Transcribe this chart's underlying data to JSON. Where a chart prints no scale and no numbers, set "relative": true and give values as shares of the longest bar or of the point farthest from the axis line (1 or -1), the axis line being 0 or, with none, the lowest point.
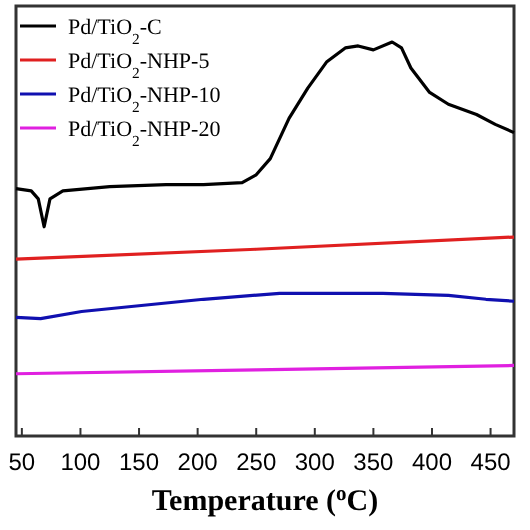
{
  "chart_data": {
    "type": "line",
    "xlabel": "Temperature ($^{o}$C)",
    "relative": true,
    "xlim": [
      45,
      470
    ],
    "xticks": [
      50,
      100,
      150,
      200,
      250,
      300,
      350,
      400,
      450
    ],
    "legend": "top left",
    "grid": false,
    "line_style": "solid",
    "series": [
      {
        "name": "Pd/TiO$_{2}$-C",
        "color": "#000000",
        "x": [
          45,
          58,
          64,
          69,
          74,
          85,
          125,
          173,
          205,
          238,
          250,
          262,
          278,
          294,
          310,
          326,
          337,
          350,
          366,
          374,
          382,
          398,
          414,
          438,
          454,
          470
        ],
        "values": [
          0.628,
          0.622,
          0.602,
          0.531,
          0.602,
          0.622,
          0.633,
          0.638,
          0.638,
          0.643,
          0.663,
          0.704,
          0.806,
          0.883,
          0.949,
          0.985,
          0.99,
          0.98,
          1,
          0.985,
          0.934,
          0.872,
          0.842,
          0.816,
          0.791,
          0.77
        ]
      },
      {
        "name": "Pd/TiO$_{2}$-NHP-5",
        "color": "#e02020",
        "x": [
          45,
          250,
          470
        ],
        "values": [
          0.449,
          0.474,
          0.505
        ]
      },
      {
        "name": "Pd/TiO$_{2}$-NHP-10",
        "color": "#1010b0",
        "x": [
          45,
          66,
          101,
          205,
          270,
          358,
          414,
          446,
          470
        ],
        "values": [
          0.301,
          0.298,
          0.316,
          0.347,
          0.362,
          0.362,
          0.357,
          0.347,
          0.342
        ]
      },
      {
        "name": "Pd/TiO$_{2}$-NHP-20",
        "color": "#e020e0",
        "x": [
          45,
          250,
          470
        ],
        "values": [
          0.158,
          0.168,
          0.179
        ]
      }
    ]
  }
}
